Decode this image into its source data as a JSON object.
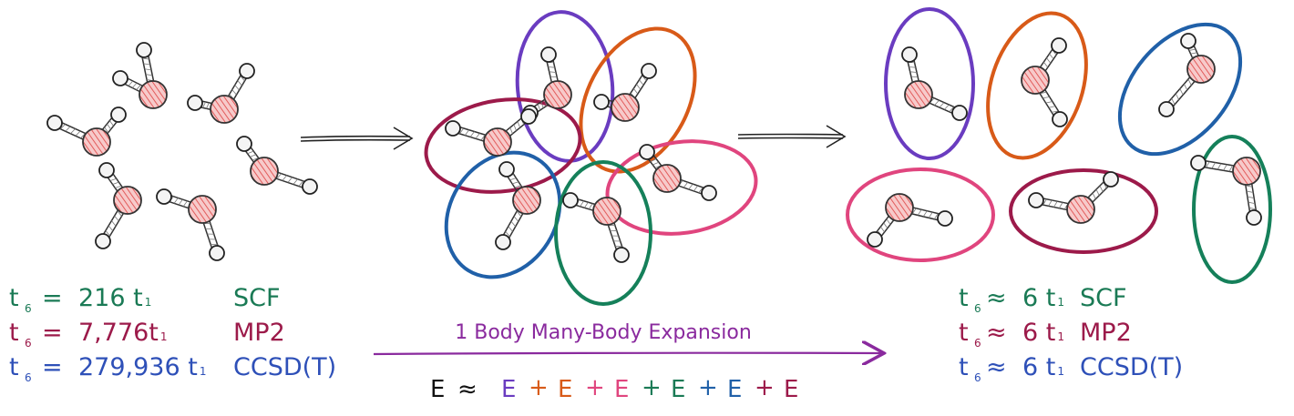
{
  "colors": {
    "green": "#1a7a55",
    "crimson": "#9c1a4a",
    "blue": "#2e50b8",
    "purple": "#6a3cc0",
    "orange": "#d85a18",
    "pink": "#e0457e",
    "navy": "#2060a8",
    "ellipse_crimson": "#9c1a4a",
    "ellipse_green": "#15805a",
    "arrow_purple": "#8a2a9e",
    "oxygen_fill": "#f5c4c4",
    "oxygen_hatch": "#e05656",
    "bond": "#333333"
  },
  "left_equations": [
    {
      "t": "t",
      "sub": "6",
      "rel": "=",
      "value": "216 t",
      "sub2": "1",
      "method": "SCF",
      "color": "green"
    },
    {
      "t": "t",
      "sub": "6",
      "rel": "=",
      "value": "7,776t",
      "sub2": "1",
      "method": "MP2",
      "color": "crimson"
    },
    {
      "t": "t",
      "sub": "6",
      "rel": "=",
      "value": "279,936 t",
      "sub2": "1",
      "method": "CCSD(T)",
      "color": "blue"
    }
  ],
  "right_equations": [
    {
      "t": "t",
      "sub": "6",
      "rel": "≈",
      "value": "6 t",
      "sub2": "1",
      "method": "SCF",
      "color": "green"
    },
    {
      "t": "t",
      "sub": "6",
      "rel": "≈",
      "value": "6 t",
      "sub2": "1",
      "method": "MP2",
      "color": "crimson"
    },
    {
      "t": "t",
      "sub": "6",
      "rel": "≈",
      "value": "6 t",
      "sub2": "1",
      "method": "CCSD(T)",
      "color": "blue"
    }
  ],
  "banner": {
    "label": "1 Body Many-Body Expansion"
  },
  "energy_sum": {
    "lhs": "E",
    "approx": "≈",
    "terms": [
      {
        "label": "E",
        "color": "purple"
      },
      {
        "label": "E",
        "color": "orange"
      },
      {
        "label": "E",
        "color": "pink"
      },
      {
        "label": "E",
        "color": "green"
      },
      {
        "label": "E",
        "color": "navy"
      },
      {
        "label": "E",
        "color": "crimson"
      }
    ],
    "plus": "+"
  }
}
